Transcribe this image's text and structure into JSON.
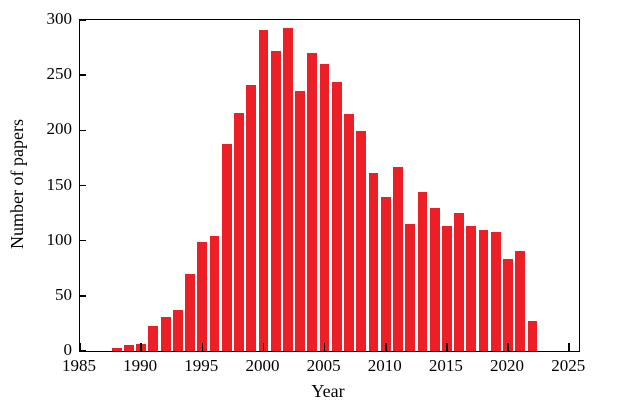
{
  "chart_data": {
    "type": "bar",
    "xlabel": "Year",
    "ylabel": "Number of papers",
    "x": [
      1988,
      1989,
      1990,
      1991,
      1992,
      1993,
      1994,
      1995,
      1996,
      1997,
      1998,
      1999,
      2000,
      2001,
      2002,
      2003,
      2004,
      2005,
      2006,
      2007,
      2008,
      2009,
      2010,
      2011,
      2012,
      2013,
      2014,
      2015,
      2016,
      2017,
      2018,
      2019,
      2020,
      2021,
      2022
    ],
    "values": [
      3,
      5,
      6,
      23,
      31,
      37,
      70,
      99,
      104,
      188,
      216,
      241,
      291,
      272,
      293,
      236,
      270,
      260,
      244,
      215,
      199,
      161,
      140,
      167,
      115,
      144,
      130,
      113,
      125,
      113,
      110,
      108,
      83,
      91,
      27
    ],
    "x_tick_labels": [
      "1985",
      "1990",
      "1995",
      "2000",
      "2005",
      "2010",
      "2015",
      "2020",
      "2025"
    ],
    "x_tick_values": [
      1985,
      1990,
      1995,
      2000,
      2005,
      2010,
      2015,
      2020,
      2025
    ],
    "y_tick_labels": [
      "0",
      "50",
      "100",
      "150",
      "200",
      "250",
      "300"
    ],
    "y_tick_values": [
      0,
      50,
      100,
      150,
      200,
      250,
      300
    ],
    "xlim": [
      1985,
      2025.8
    ],
    "ylim": [
      0,
      300
    ],
    "bar_color": "#ec1e26",
    "axis_color": "#000000",
    "grid": false,
    "legend": "none"
  }
}
